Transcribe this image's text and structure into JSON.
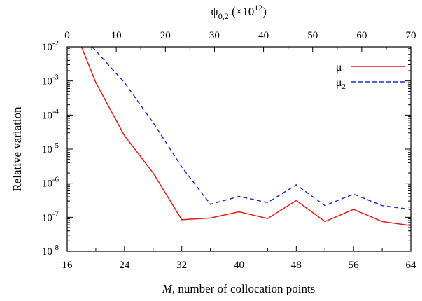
{
  "chart_data": {
    "type": "line",
    "y_scale": "log",
    "ylim": [
      1e-08,
      0.01
    ],
    "xlim": [
      16,
      64
    ],
    "ylabel": "Relative variation",
    "xlabel": {
      "italic_part": "M",
      "rest": ", number of collocation points"
    },
    "top_xlabel": {
      "base": "ψ",
      "sub": "0,2",
      "mid": " (×10",
      "sup": "12",
      "end": ")"
    },
    "x_ticks": [
      "16",
      "24",
      "32",
      "40",
      "48",
      "56",
      "64"
    ],
    "top_x_ticks": [
      "0",
      "10",
      "20",
      "30",
      "40",
      "50",
      "60",
      "70"
    ],
    "top_xlim": [
      0,
      70
    ],
    "y_ticks": [
      {
        "base": "10",
        "exp": "-2"
      },
      {
        "base": "10",
        "exp": "-3"
      },
      {
        "base": "10",
        "exp": "-4"
      },
      {
        "base": "10",
        "exp": "-5"
      },
      {
        "base": "10",
        "exp": "-6"
      },
      {
        "base": "10",
        "exp": "-7"
      },
      {
        "base": "10",
        "exp": "-8"
      }
    ],
    "legend_position": "top-right",
    "series": [
      {
        "name": "μ",
        "sub": "1",
        "color": "#e8191a",
        "style": "solid",
        "x": [
          16,
          18,
          20,
          24,
          28,
          32,
          36,
          40,
          44,
          48,
          52,
          56,
          60,
          64
        ],
        "y": [
          0.1,
          0.01,
          0.0009,
          2.5e-05,
          2e-06,
          8.5e-08,
          9.5e-08,
          1.45e-07,
          9.2e-08,
          3.1e-07,
          7.5e-08,
          1.7e-07,
          7.5e-08,
          5.7e-08
        ]
      },
      {
        "name": "μ",
        "sub": "2",
        "color": "#1f2fc8",
        "style": "dashed",
        "x": [
          19.5,
          24,
          28,
          32,
          36,
          40,
          44,
          48,
          52,
          56,
          60,
          64
        ],
        "y": [
          0.01,
          0.0009,
          6e-05,
          3e-06,
          2.4e-07,
          4.1e-07,
          2.7e-07,
          9e-07,
          2.2e-07,
          4.8e-07,
          2.2e-07,
          1.7e-07
        ]
      }
    ]
  }
}
